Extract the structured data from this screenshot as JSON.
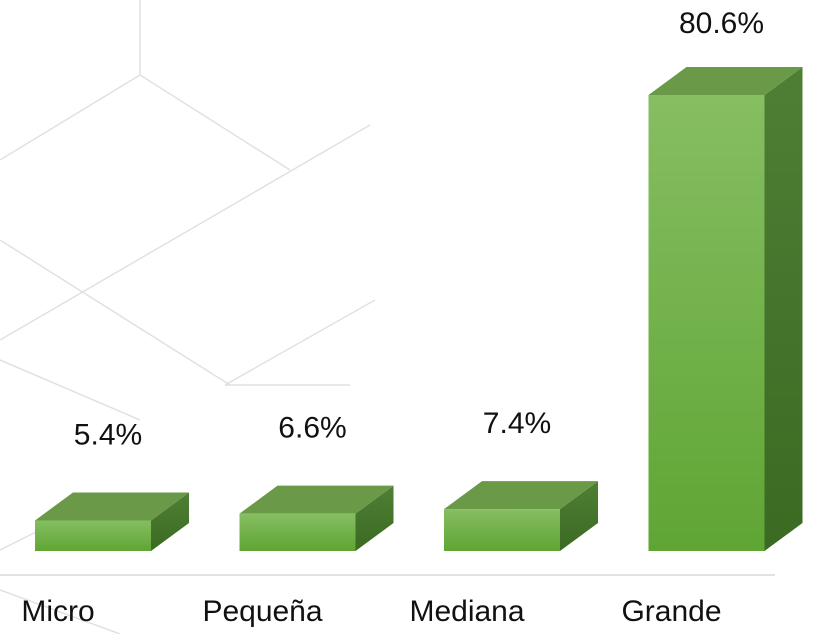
{
  "chart_data": {
    "type": "bar3d",
    "categories": [
      "Micro",
      "Pequeña",
      "Mediana",
      "Grande"
    ],
    "values": [
      5.4,
      6.6,
      7.4,
      80.6
    ],
    "value_labels": [
      "5.4%",
      "6.6%",
      "7.4%",
      "80.6%"
    ],
    "color": "#6db33f"
  }
}
